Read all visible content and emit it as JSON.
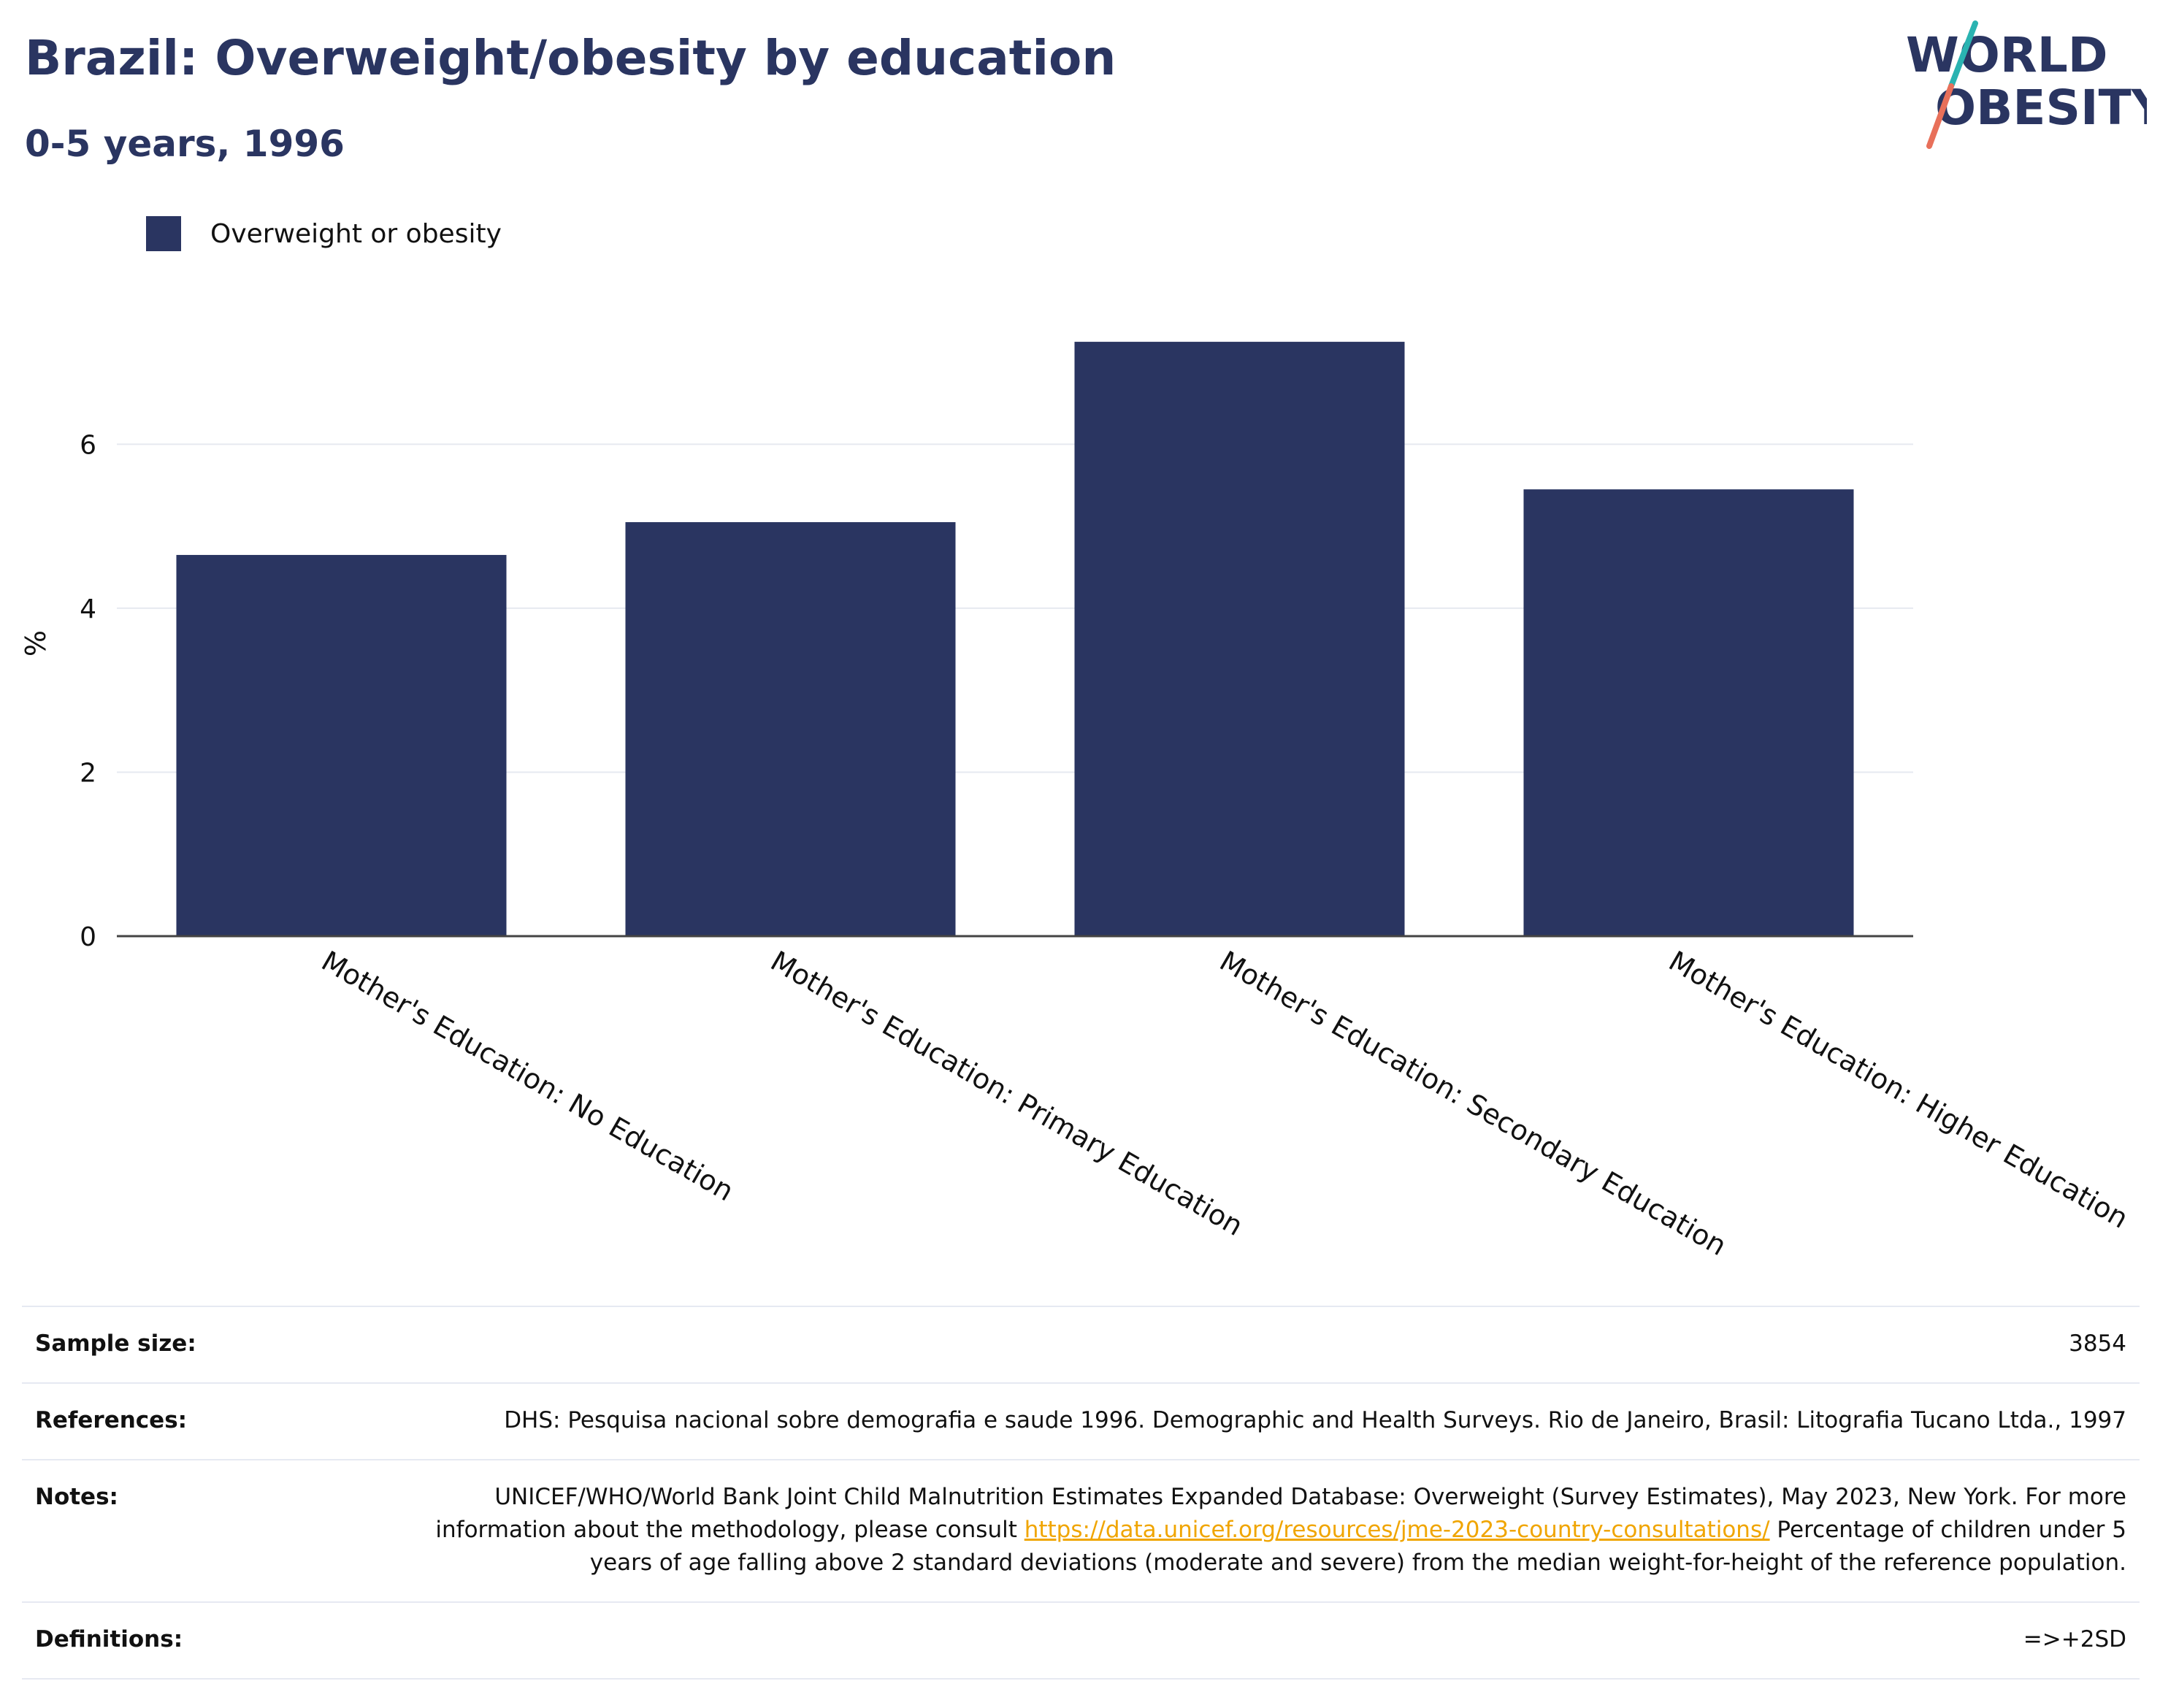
{
  "header": {
    "title": "Brazil: Overweight/obesity by education",
    "subtitle": "0-5 years, 1996"
  },
  "logo": {
    "line1": "WORLD",
    "line2": "OBESITY"
  },
  "colors": {
    "bar": "#2a3561",
    "title": "#2a3561",
    "link": "#f0a500",
    "logo_teal": "#2ab3b1",
    "logo_coral": "#e8705a"
  },
  "chart_data": {
    "type": "bar",
    "categories": [
      "Mother's Education: No Education",
      "Mother's Education: Primary Education",
      "Mother's Education: Secondary Education",
      "Mother's Education: Higher Education"
    ],
    "series": [
      {
        "name": "Overweight or obesity",
        "values": [
          4.65,
          5.05,
          7.25,
          5.45
        ]
      }
    ],
    "ylabel": "%",
    "xlabel": "",
    "ylim": [
      0,
      7.5
    ],
    "yticks": [
      0,
      2,
      4,
      6
    ],
    "grid": true,
    "legend": "top-left"
  },
  "meta": {
    "sample_size_label": "Sample size:",
    "sample_size_value": "3854",
    "references_label": "References:",
    "references_value": "DHS: Pesquisa nacional sobre demografia e saude 1996. Demographic and Health Surveys. Rio de Janeiro, Brasil: Litografia Tucano Ltda., 1997",
    "notes_label": "Notes:",
    "notes_text1": "UNICEF/WHO/World Bank Joint Child Malnutrition Estimates Expanded Database: Overweight (Survey Estimates), May 2023, New York. For more information about the methodology, please consult",
    "notes_link": "https://data.unicef.org/resources/jme-2023-country-consultations/",
    "notes_text2": "Percentage of children under 5 years of age falling above 2 standard deviations (moderate and severe) from the median weight-for-height of the reference population.",
    "definitions_label": "Definitions:",
    "definitions_value": "=>+2SD"
  }
}
